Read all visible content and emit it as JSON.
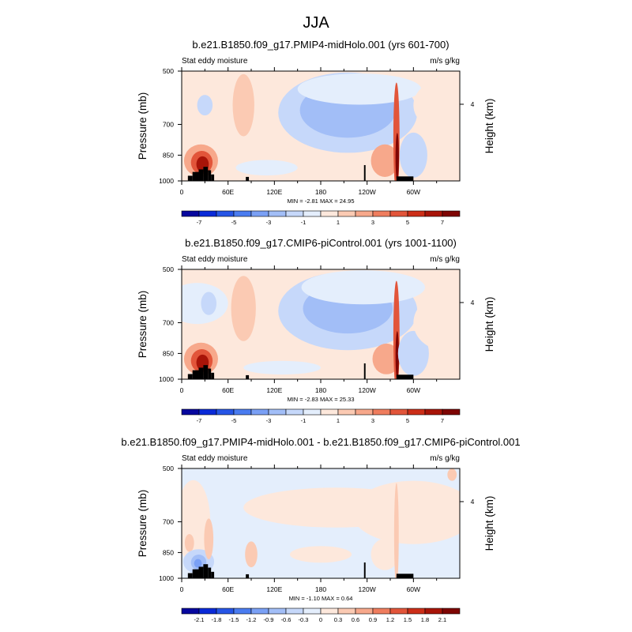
{
  "figure": {
    "title": "JJA"
  },
  "chart_data": [
    {
      "type": "heatmap",
      "title": "b.e21.B1850.f09_g17.PMIP4-midHolo.001 (yrs 601-700)",
      "left_label": "Stat eddy moisture",
      "right_label": "m/s g/kg",
      "ylabel": "Pressure (mb)",
      "ylabel_right": "Height (km)",
      "x_ticks": [
        "0",
        "60E",
        "120E",
        "180",
        "120W",
        "60W"
      ],
      "x_tick_lon": [
        0,
        60,
        120,
        180,
        240,
        300
      ],
      "xlim": [
        0,
        360
      ],
      "y_ticks": [
        "500",
        "700",
        "850",
        "1000"
      ],
      "y_tick_p": [
        500,
        700,
        850,
        1000
      ],
      "ylim": [
        1000,
        500
      ],
      "right_ticks": [
        "4"
      ],
      "right_tick_km": [
        4
      ],
      "min_max_text": "MIN =  -2.81  MAX =  24.95",
      "min": -2.81,
      "max": 24.95,
      "colorbar": {
        "levels": [
          -8,
          -7,
          -6,
          -5,
          -4,
          -3,
          -2,
          -1,
          0,
          1,
          2,
          3,
          4,
          5,
          6,
          7,
          8
        ],
        "labels": [
          "-7",
          "-5",
          "-3",
          "-1",
          "1",
          "3",
          "5",
          "7"
        ],
        "label_levels": [
          -7,
          -5,
          -3,
          -1,
          1,
          3,
          5,
          7
        ]
      },
      "features": [
        {
          "kind": "ellipse",
          "lon": 115,
          "p": 750,
          "dlon": 120,
          "dp": 360,
          "level": 0.6
        },
        {
          "kind": "ellipse",
          "lon": 215,
          "p": 650,
          "dlon": 90,
          "dp": 360,
          "level": -1.5
        },
        {
          "kind": "ellipse",
          "lon": 215,
          "p": 640,
          "dlon": 62,
          "dp": 220,
          "level": -2.5
        },
        {
          "kind": "ellipse",
          "lon": 230,
          "p": 560,
          "dlon": 80,
          "dp": 110,
          "level": -0.5
        },
        {
          "kind": "ellipse",
          "lon": 80,
          "p": 620,
          "dlon": 14,
          "dp": 240,
          "level": 1.5
        },
        {
          "kind": "ellipse",
          "lon": 30,
          "p": 620,
          "dlon": 10,
          "dp": 80,
          "level": -1.5
        },
        {
          "kind": "ellipse",
          "lon": 110,
          "p": 920,
          "dlon": 40,
          "dp": 90,
          "level": -0.5
        },
        {
          "kind": "ellipse",
          "lon": 25,
          "p": 880,
          "dlon": 22,
          "dp": 180,
          "level": 2.5
        },
        {
          "kind": "ellipse",
          "lon": 26,
          "p": 890,
          "dlon": 14,
          "dp": 130,
          "level": 4.5
        },
        {
          "kind": "ellipse",
          "lon": 27,
          "p": 900,
          "dlon": 8,
          "dp": 90,
          "level": 6.5
        },
        {
          "kind": "ellipse",
          "lon": 263,
          "p": 880,
          "dlon": 18,
          "dp": 180,
          "level": 2.5
        },
        {
          "kind": "ellipse",
          "lon": 278,
          "p": 760,
          "dlon": 4,
          "dp": 520,
          "level": 4.5
        },
        {
          "kind": "ellipse",
          "lon": 279,
          "p": 860,
          "dlon": 2.2,
          "dp": 260,
          "level": 7.5
        },
        {
          "kind": "ellipse",
          "lon": 300,
          "p": 850,
          "dlon": 18,
          "dp": 240,
          "level": -1.5
        },
        {
          "kind": "ellipse",
          "lon": 340,
          "p": 620,
          "dlon": 40,
          "dp": 200,
          "level": 0.6
        }
      ],
      "terrain": [
        {
          "lon": [
            8,
            14
          ],
          "top": 968
        },
        {
          "lon": [
            14,
            22
          ],
          "top": 945
        },
        {
          "lon": [
            22,
            28
          ],
          "top": 930
        },
        {
          "lon": [
            28,
            34
          ],
          "top": 915
        },
        {
          "lon": [
            34,
            38
          ],
          "top": 935
        },
        {
          "lon": [
            38,
            42
          ],
          "top": 960
        },
        {
          "lon": [
            83,
            87
          ],
          "top": 975
        },
        {
          "lon": [
            236,
            238
          ],
          "top": 905
        },
        {
          "lon": [
            278,
            300
          ],
          "top": 972
        }
      ]
    },
    {
      "type": "heatmap",
      "title": "b.e21.B1850.f09_g17.CMIP6-piControl.001 (yrs 1001-1100)",
      "left_label": "Stat eddy moisture",
      "right_label": "m/s g/kg",
      "ylabel": "Pressure (mb)",
      "ylabel_right": "Height (km)",
      "x_ticks": [
        "0",
        "60E",
        "120E",
        "180",
        "120W",
        "60W"
      ],
      "x_tick_lon": [
        0,
        60,
        120,
        180,
        240,
        300
      ],
      "xlim": [
        0,
        360
      ],
      "y_ticks": [
        "500",
        "700",
        "850",
        "1000"
      ],
      "y_tick_p": [
        500,
        700,
        850,
        1000
      ],
      "ylim": [
        1000,
        500
      ],
      "right_ticks": [
        "4"
      ],
      "right_tick_km": [
        4
      ],
      "min_max_text": "MIN =  -2.83  MAX =  25.33",
      "min": -2.83,
      "max": 25.33,
      "colorbar": {
        "levels": [
          -8,
          -7,
          -6,
          -5,
          -4,
          -3,
          -2,
          -1,
          0,
          1,
          2,
          3,
          4,
          5,
          6,
          7,
          8
        ],
        "labels": [
          "-7",
          "-5",
          "-3",
          "-1",
          "1",
          "3",
          "5",
          "7"
        ],
        "label_levels": [
          -7,
          -5,
          -3,
          -1,
          1,
          3,
          5,
          7
        ]
      },
      "features": [
        {
          "kind": "ellipse",
          "lon": 20,
          "p": 620,
          "dlon": 40,
          "dp": 160,
          "level": -0.5
        },
        {
          "kind": "ellipse",
          "lon": 35,
          "p": 620,
          "dlon": 10,
          "dp": 90,
          "level": -1.5
        },
        {
          "kind": "ellipse",
          "lon": 80,
          "p": 640,
          "dlon": 16,
          "dp": 260,
          "level": 1.5
        },
        {
          "kind": "ellipse",
          "lon": 130,
          "p": 930,
          "dlon": 50,
          "dp": 80,
          "level": -0.5
        },
        {
          "kind": "ellipse",
          "lon": 215,
          "p": 650,
          "dlon": 90,
          "dp": 340,
          "level": -1.5
        },
        {
          "kind": "ellipse",
          "lon": 215,
          "p": 640,
          "dlon": 58,
          "dp": 200,
          "level": -2.5
        },
        {
          "kind": "ellipse",
          "lon": 235,
          "p": 560,
          "dlon": 80,
          "dp": 120,
          "level": -0.5
        },
        {
          "kind": "ellipse",
          "lon": 25,
          "p": 880,
          "dlon": 22,
          "dp": 180,
          "level": 2.5
        },
        {
          "kind": "ellipse",
          "lon": 26,
          "p": 890,
          "dlon": 14,
          "dp": 130,
          "level": 4.5
        },
        {
          "kind": "ellipse",
          "lon": 27,
          "p": 900,
          "dlon": 8,
          "dp": 90,
          "level": 6.5
        },
        {
          "kind": "ellipse",
          "lon": 265,
          "p": 880,
          "dlon": 18,
          "dp": 170,
          "level": 2.5
        },
        {
          "kind": "ellipse",
          "lon": 278,
          "p": 760,
          "dlon": 4,
          "dp": 520,
          "level": 4.5
        },
        {
          "kind": "ellipse",
          "lon": 279,
          "p": 860,
          "dlon": 2.2,
          "dp": 260,
          "level": 7.5
        },
        {
          "kind": "ellipse",
          "lon": 300,
          "p": 850,
          "dlon": 20,
          "dp": 240,
          "level": -1.5
        },
        {
          "kind": "ellipse",
          "lon": 340,
          "p": 700,
          "dlon": 40,
          "dp": 240,
          "level": 0.6
        }
      ],
      "terrain": [
        {
          "lon": [
            8,
            14
          ],
          "top": 968
        },
        {
          "lon": [
            14,
            22
          ],
          "top": 945
        },
        {
          "lon": [
            22,
            28
          ],
          "top": 930
        },
        {
          "lon": [
            28,
            34
          ],
          "top": 915
        },
        {
          "lon": [
            34,
            38
          ],
          "top": 935
        },
        {
          "lon": [
            38,
            42
          ],
          "top": 960
        },
        {
          "lon": [
            83,
            87
          ],
          "top": 975
        },
        {
          "lon": [
            236,
            238
          ],
          "top": 905
        },
        {
          "lon": [
            278,
            300
          ],
          "top": 972
        }
      ]
    },
    {
      "type": "heatmap",
      "title": "b.e21.B1850.f09_g17.PMIP4-midHolo.001 - b.e21.B1850.f09_g17.CMIP6-piControl.001",
      "left_label": "Stat eddy moisture",
      "right_label": "m/s g/kg",
      "ylabel": "Pressure (mb)",
      "ylabel_right": "Height (km)",
      "x_ticks": [
        "0",
        "60E",
        "120E",
        "180",
        "120W",
        "60W"
      ],
      "x_tick_lon": [
        0,
        60,
        120,
        180,
        240,
        300
      ],
      "xlim": [
        0,
        360
      ],
      "y_ticks": [
        "500",
        "700",
        "850",
        "1000"
      ],
      "y_tick_p": [
        500,
        700,
        850,
        1000
      ],
      "ylim": [
        1000,
        500
      ],
      "right_ticks": [
        "4"
      ],
      "right_tick_km": [
        4
      ],
      "min_max_text": "MIN =  -1.10  MAX =   0.64",
      "min": -1.1,
      "max": 0.64,
      "colorbar": {
        "levels": [
          -2.4,
          -2.1,
          -1.8,
          -1.5,
          -1.2,
          -0.9,
          -0.6,
          -0.3,
          0,
          0.3,
          0.6,
          0.9,
          1.2,
          1.5,
          1.8,
          2.1,
          2.4
        ],
        "labels": [
          "-2.1",
          "-1.8",
          "-1.5",
          "-1.2",
          "-0.9",
          "-0.6",
          "-0.3",
          "0",
          "0.3",
          "0.6",
          "0.9",
          "1.2",
          "1.5",
          "1.8",
          "2.1"
        ],
        "label_levels": [
          -2.1,
          -1.8,
          -1.5,
          -1.2,
          -0.9,
          -0.6,
          -0.3,
          0,
          0.3,
          0.6,
          0.9,
          1.2,
          1.5,
          1.8,
          2.1
        ]
      },
      "background_level": -0.15,
      "features": [
        {
          "kind": "ellipse",
          "lon": 15,
          "p": 700,
          "dlon": 22,
          "dp": 360,
          "level": 0.15
        },
        {
          "kind": "ellipse",
          "lon": 10,
          "p": 800,
          "dlon": 6,
          "dp": 90,
          "level": 0.45
        },
        {
          "kind": "ellipse",
          "lon": 200,
          "p": 640,
          "dlon": 120,
          "dp": 160,
          "level": 0.15
        },
        {
          "kind": "ellipse",
          "lon": 300,
          "p": 660,
          "dlon": 80,
          "dp": 260,
          "level": 0.15
        },
        {
          "kind": "ellipse",
          "lon": 90,
          "p": 860,
          "dlon": 8,
          "dp": 140,
          "level": 0.45
        },
        {
          "kind": "ellipse",
          "lon": 180,
          "p": 860,
          "dlon": 40,
          "dp": 90,
          "level": 0.15
        },
        {
          "kind": "ellipse",
          "lon": 263,
          "p": 860,
          "dlon": 18,
          "dp": 170,
          "level": 0.15
        },
        {
          "kind": "ellipse",
          "lon": 278,
          "p": 760,
          "dlon": 3,
          "dp": 480,
          "level": 0.45
        },
        {
          "kind": "ellipse",
          "lon": 22,
          "p": 900,
          "dlon": 20,
          "dp": 140,
          "level": -0.45
        },
        {
          "kind": "ellipse",
          "lon": 22,
          "p": 905,
          "dlon": 10,
          "dp": 90,
          "level": -0.75
        },
        {
          "kind": "ellipse",
          "lon": 21,
          "p": 910,
          "dlon": 5,
          "dp": 50,
          "level": -1.05
        },
        {
          "kind": "ellipse",
          "lon": 35,
          "p": 780,
          "dlon": 6,
          "dp": 200,
          "level": 0.45
        },
        {
          "kind": "ellipse",
          "lon": 350,
          "p": 520,
          "dlon": 6,
          "dp": 40,
          "level": 0.45
        }
      ],
      "terrain": [
        {
          "lon": [
            8,
            14
          ],
          "top": 968
        },
        {
          "lon": [
            14,
            22
          ],
          "top": 945
        },
        {
          "lon": [
            22,
            28
          ],
          "top": 930
        },
        {
          "lon": [
            28,
            34
          ],
          "top": 915
        },
        {
          "lon": [
            34,
            38
          ],
          "top": 935
        },
        {
          "lon": [
            38,
            42
          ],
          "top": 960
        },
        {
          "lon": [
            83,
            87
          ],
          "top": 975
        },
        {
          "lon": [
            236,
            238
          ],
          "top": 905
        },
        {
          "lon": [
            278,
            300
          ],
          "top": 972
        }
      ]
    }
  ]
}
